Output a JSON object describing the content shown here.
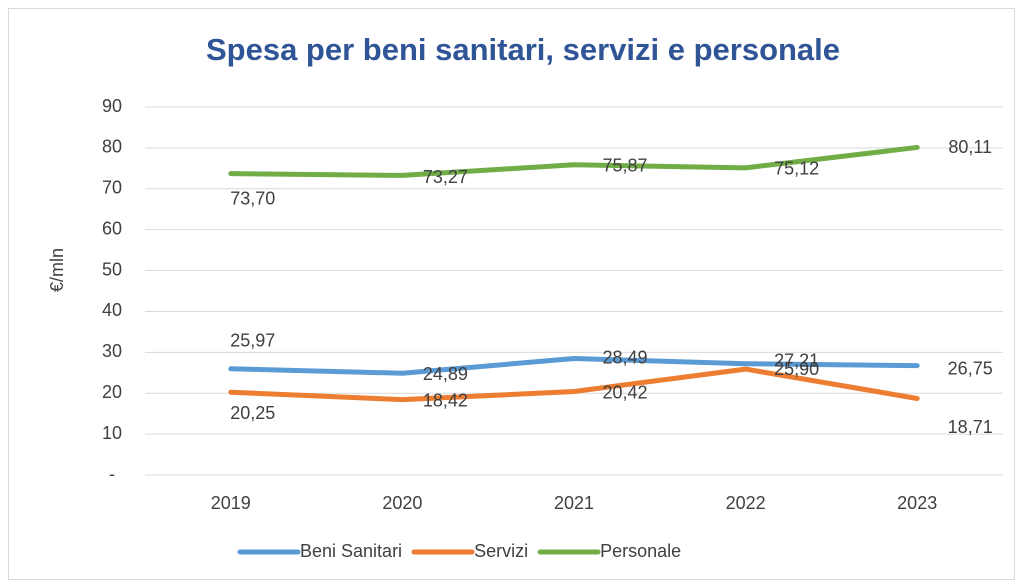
{
  "chart_data": {
    "type": "line",
    "title": "Spesa per beni sanitari, servizi e personale",
    "ylabel": "€/mln",
    "categories": [
      "2019",
      "2020",
      "2021",
      "2022",
      "2023"
    ],
    "series": [
      {
        "name": "Beni Sanitari",
        "color": "#5b9bd5",
        "values": [
          25.97,
          24.89,
          28.49,
          27.21,
          26.75
        ],
        "value_labels": [
          "25,97",
          "24,89",
          "28,49",
          "27,21",
          "26,75"
        ]
      },
      {
        "name": "Servizi",
        "color": "#ed7d31",
        "values": [
          20.25,
          18.42,
          20.42,
          25.9,
          18.71
        ],
        "value_labels": [
          "20,25",
          "18,42",
          "20,42",
          "25,90",
          "18,71"
        ]
      },
      {
        "name": "Personale",
        "color": "#70ad47",
        "values": [
          73.7,
          73.27,
          75.87,
          75.12,
          80.11
        ],
        "value_labels": [
          "73,70",
          "73,27",
          "75,87",
          "75,12",
          "80,11"
        ]
      }
    ],
    "ylim": [
      0,
      90
    ],
    "yticks": [
      {
        "value": 0,
        "label": "-"
      },
      10,
      20,
      30,
      40,
      50,
      60,
      70,
      80,
      90
    ],
    "grid": true,
    "legend": "bottom"
  }
}
